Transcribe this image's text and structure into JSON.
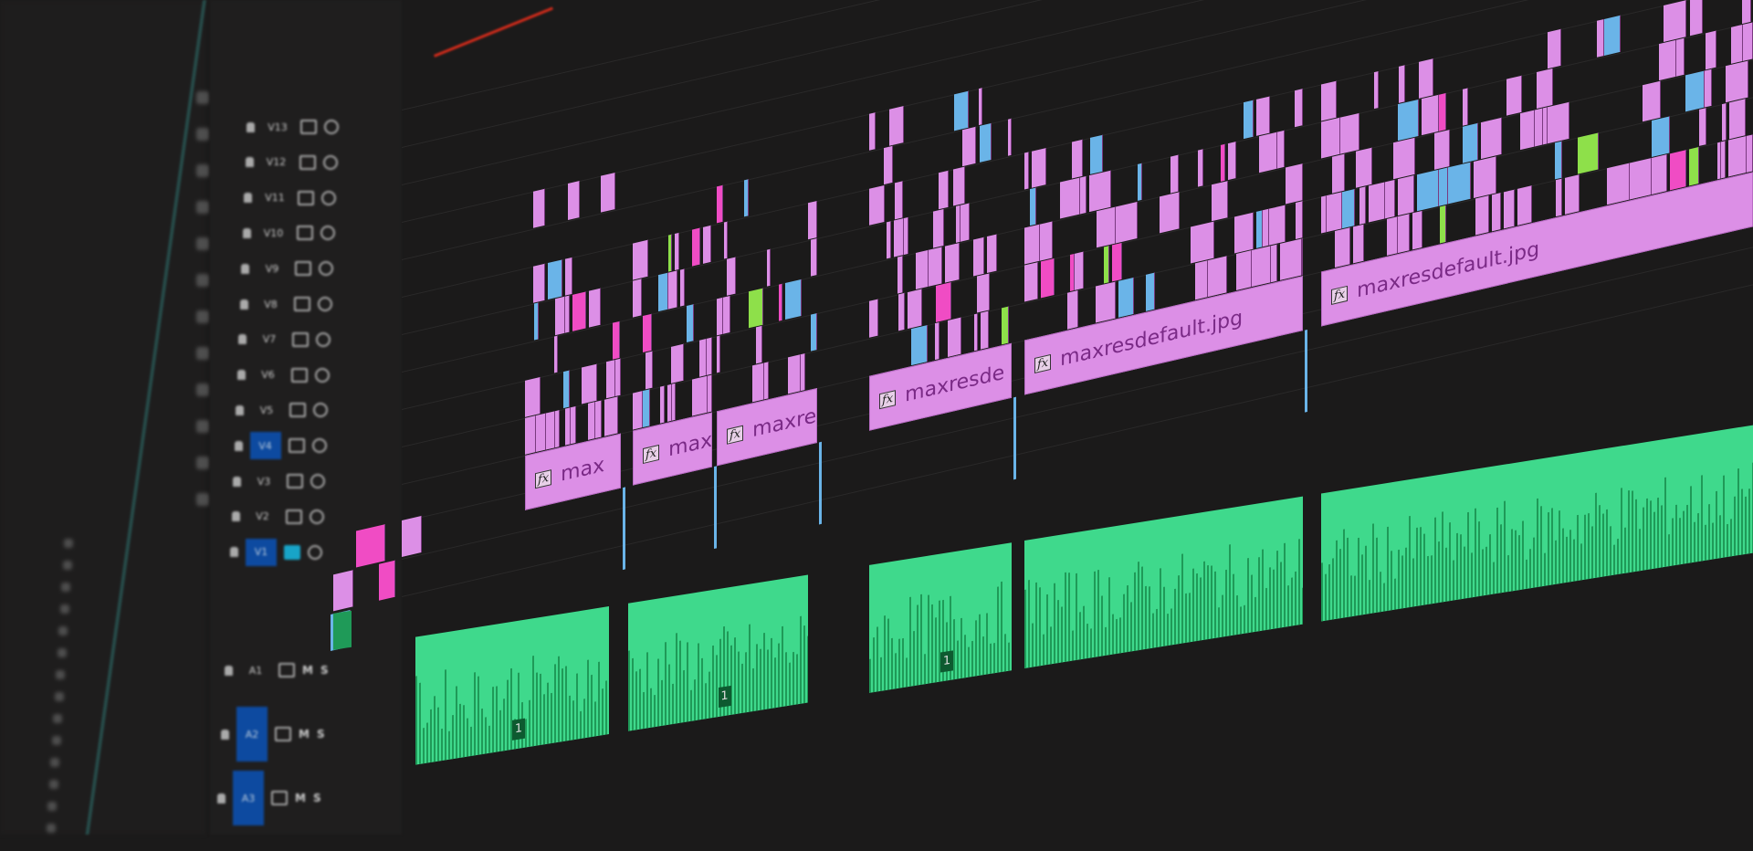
{
  "timeline": {
    "video_tracks": [
      "V13",
      "V12",
      "V11",
      "V10",
      "V9",
      "V8",
      "V7",
      "V6",
      "V5",
      "V4",
      "V3",
      "V2",
      "V1"
    ],
    "audio_tracks": [
      "A1",
      "A2",
      "A3"
    ],
    "active_tracks": [
      "V4",
      "V1",
      "A2",
      "A3"
    ],
    "mute_label": "M",
    "solo_label": "S",
    "clips": [
      {
        "name": "max",
        "track": "V3"
      },
      {
        "name": "maxi",
        "track": "V3"
      },
      {
        "name": "maxre",
        "track": "V3"
      },
      {
        "name": "maxresde",
        "track": "V3"
      },
      {
        "name": "maxresdefault.jpg",
        "track": "V3"
      },
      {
        "name": "maxresdefault.jpg",
        "track": "V3"
      }
    ],
    "fx_badge": "fx",
    "audio_clips": [
      {
        "label": "1"
      },
      {
        "label": "1"
      },
      {
        "label": "1"
      },
      {
        "label": ""
      },
      {
        "label": ""
      }
    ]
  },
  "colors": {
    "video_clip": "#dc8fe6",
    "video_clip_alt": "#f04cc4",
    "video_blue": "#6ab4e8",
    "video_green": "#8ee04a",
    "audio_clip": "#3fd98c",
    "audio_wave": "#1f9a58",
    "track_target": "#0d4aa0",
    "playhead_range": "#d02a1a"
  }
}
